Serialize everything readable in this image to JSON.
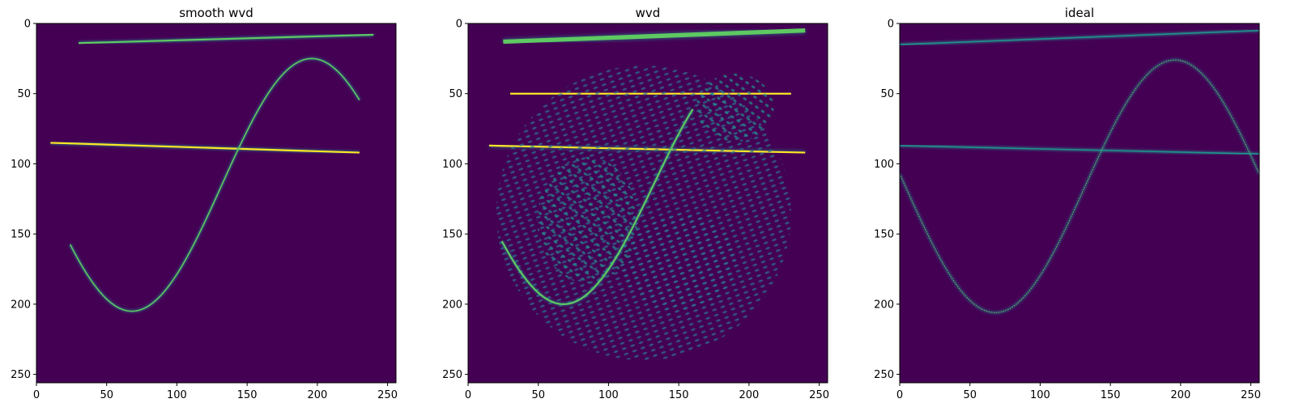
{
  "chart_data": [
    {
      "type": "heatmap",
      "title": "smooth wvd",
      "colormap": "viridis",
      "xlim": [
        0,
        256
      ],
      "ylim": [
        256,
        0
      ],
      "xticks": [
        0,
        50,
        100,
        150,
        200,
        250
      ],
      "yticks": [
        0,
        50,
        100,
        150,
        200,
        250
      ],
      "features": [
        {
          "kind": "chirp_line",
          "x": [
            30,
            240
          ],
          "y": [
            14,
            8
          ],
          "intensity": 0.8
        },
        {
          "kind": "tone_line",
          "x": [
            10,
            230
          ],
          "y": [
            85,
            92
          ],
          "intensity": 0.9
        },
        {
          "kind": "sinusoid",
          "x_range": [
            24,
            230
          ],
          "center_y": 115,
          "amplitude": 90,
          "period": 256,
          "phase_x": 68,
          "intensity": 0.75
        }
      ]
    },
    {
      "type": "heatmap",
      "title": "wvd",
      "colormap": "viridis",
      "xlim": [
        0,
        256
      ],
      "ylim": [
        256,
        0
      ],
      "xticks": [
        0,
        50,
        100,
        150,
        200,
        250
      ],
      "yticks": [
        0,
        50,
        100,
        150,
        200,
        250
      ],
      "features": [
        {
          "kind": "chirp_line",
          "x": [
            25,
            240
          ],
          "y": [
            13,
            5
          ],
          "intensity": 0.75
        },
        {
          "kind": "tone_line",
          "x": [
            15,
            240
          ],
          "y": [
            87,
            92
          ],
          "intensity": 0.85
        },
        {
          "kind": "tone_line",
          "x": [
            30,
            230
          ],
          "y": [
            50,
            50
          ],
          "intensity": 0.9
        },
        {
          "kind": "cross_terms",
          "region": [
            [
              20,
              30
            ],
            [
              230,
              240
            ]
          ],
          "intensity": 0.5
        },
        {
          "kind": "sinusoid",
          "x_range": [
            24,
            160
          ],
          "center_y": 115,
          "amplitude": 85,
          "period": 256,
          "phase_x": 68,
          "intensity": 0.65
        }
      ]
    },
    {
      "type": "heatmap",
      "title": "ideal",
      "colormap": "viridis",
      "xlim": [
        0,
        256
      ],
      "ylim": [
        256,
        0
      ],
      "xticks": [
        0,
        50,
        100,
        150,
        200,
        250
      ],
      "yticks": [
        0,
        50,
        100,
        150,
        200,
        250
      ],
      "features": [
        {
          "kind": "chirp_line",
          "x": [
            0,
            256
          ],
          "y": [
            15,
            5
          ],
          "intensity": 0.55
        },
        {
          "kind": "tone_line",
          "x": [
            0,
            256
          ],
          "y": [
            87,
            93
          ],
          "intensity": 0.55
        },
        {
          "kind": "sinusoid",
          "x_range": [
            0,
            256
          ],
          "center_y": 116,
          "amplitude": 90,
          "period": 256,
          "phase_x": 68,
          "intensity": 0.7
        }
      ]
    }
  ],
  "colors": {
    "background": "#440154",
    "low": "#3b528b",
    "mid": "#21918c",
    "high": "#5ec962",
    "peak": "#fde725"
  }
}
